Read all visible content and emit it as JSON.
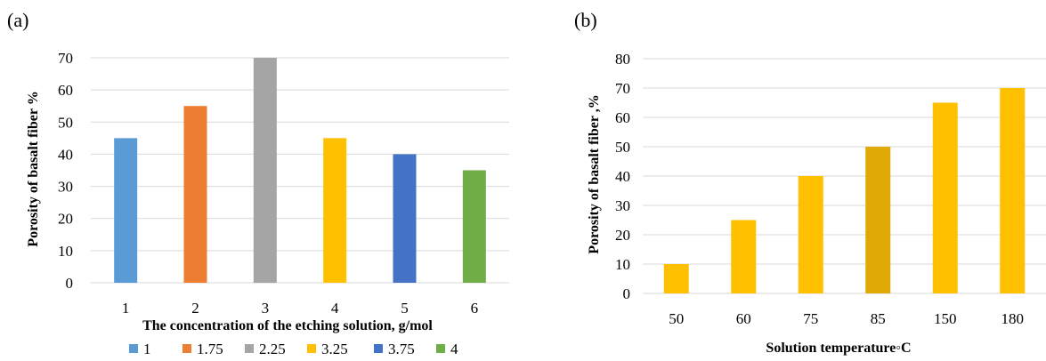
{
  "chart_data": [
    {
      "panel_label": "(a)",
      "type": "bar",
      "categories": [
        "1",
        "2",
        "3",
        "4",
        "5",
        "6"
      ],
      "values": [
        45,
        55,
        70,
        45,
        40,
        35
      ],
      "colors": [
        "#5b9bd5",
        "#ed7d31",
        "#a5a5a5",
        "#ffc000",
        "#4472c4",
        "#70ad47"
      ],
      "xlabel": "The concentration of the etching solution, g/mol",
      "ylabel": "Porosity of basalt fiber %",
      "ylim": [
        0,
        70
      ],
      "yticks": [
        "0",
        "10",
        "20",
        "30",
        "40",
        "50",
        "60",
        "70"
      ],
      "grid": true,
      "legend_position": "bottom",
      "legend": [
        "1",
        "1.75",
        "2.25",
        "3.25",
        "3.75",
        "4"
      ]
    },
    {
      "panel_label": "(b)",
      "type": "bar",
      "categories": [
        "50",
        "60",
        "75",
        "85",
        "150",
        "180"
      ],
      "values": [
        10,
        25,
        40,
        50,
        65,
        70
      ],
      "colors": [
        "#ffc000",
        "#ffc000",
        "#ffc000",
        "#e1a905",
        "#ffc000",
        "#ffc000"
      ],
      "xlabel": "Solution temperature◦C",
      "ylabel": "Porosity of basalt fiber ,%",
      "ylim": [
        0,
        80
      ],
      "yticks": [
        "0",
        "10",
        "20",
        "30",
        "40",
        "50",
        "60",
        "70",
        "80"
      ],
      "grid": true
    }
  ]
}
